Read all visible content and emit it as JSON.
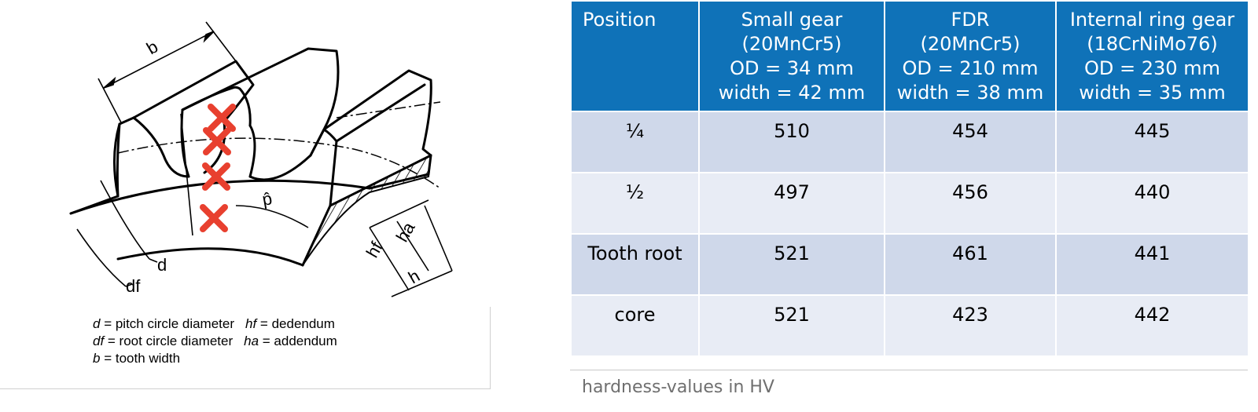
{
  "diagram": {
    "labels": {
      "b": "b",
      "p": "p̂",
      "d": "d",
      "df": "df",
      "hf": "hf",
      "ha": "ha",
      "h": "h"
    },
    "marker_color": "#e8402f",
    "legend": [
      [
        {
          "sym": "d",
          "text": " = pitch circle diameter"
        },
        {
          "sym": "hf",
          "text": " = dedendum"
        }
      ],
      [
        {
          "sym": "df",
          "text": " = root circle diameter"
        },
        {
          "sym": "ha",
          "text": " = addendum"
        }
      ],
      [
        {
          "sym": "b",
          "text": " = tooth width"
        }
      ]
    ]
  },
  "table": {
    "header_color": "#0f72b8",
    "headers": [
      {
        "lines": [
          "Position"
        ]
      },
      {
        "lines": [
          "Small gear",
          "(20MnCr5)",
          "OD = 34 mm",
          "width = 42 mm"
        ]
      },
      {
        "lines": [
          "FDR",
          "(20MnCr5)",
          "OD = 210 mm",
          "width =  38 mm"
        ]
      },
      {
        "lines": [
          "Internal ring gear",
          "(18CrNiMo76)",
          "OD = 230 mm",
          "width = 35 mm"
        ]
      }
    ],
    "rows": [
      [
        "¼",
        "510",
        "454",
        "445"
      ],
      [
        "½",
        "497",
        "456",
        "440"
      ],
      [
        "Tooth root",
        "521",
        "461",
        "441"
      ],
      [
        "core",
        "521",
        "423",
        "442"
      ]
    ],
    "caption": "hardness-values in HV"
  }
}
